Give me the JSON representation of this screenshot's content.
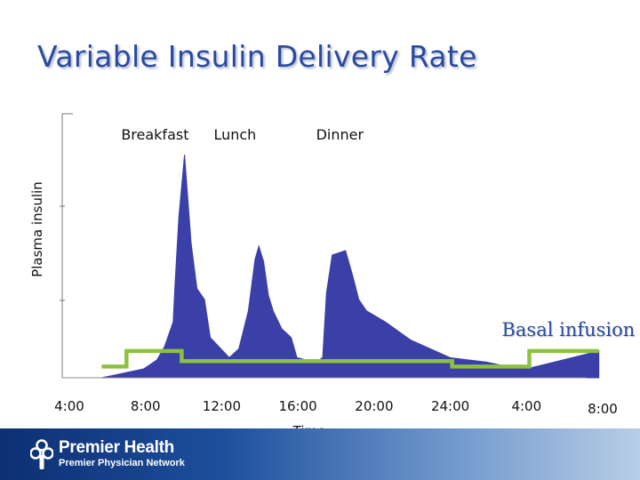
{
  "title": "Variable Insulin Delivery Rate",
  "footer": {
    "brand": "Premier Health",
    "subtitle": "Premier Physician Network"
  },
  "colors": {
    "title": "#2b4a9e",
    "area": "#3b3fa8",
    "basal": "#8cc23f"
  },
  "chart_data": {
    "type": "area",
    "title": "Variable Insulin Delivery Rate",
    "xlabel": "Time",
    "ylabel": "Plasma insulin",
    "xlim": [
      4,
      32
    ],
    "ylim": [
      0,
      100
    ],
    "x_ticks": [
      {
        "value": 4,
        "label": "4:00"
      },
      {
        "value": 8,
        "label": "8:00"
      },
      {
        "value": 12,
        "label": "12:00"
      },
      {
        "value": 16,
        "label": "16:00"
      },
      {
        "value": 20,
        "label": "20:00"
      },
      {
        "value": 24,
        "label": "24:00"
      },
      {
        "value": 28,
        "label": "4:00"
      },
      {
        "value": 32,
        "label": "8:00"
      }
    ],
    "meals": [
      {
        "label": "Breakfast",
        "x": 8.5
      },
      {
        "label": "Lunch",
        "x": 12.7
      },
      {
        "label": "Dinner",
        "x": 18.2
      }
    ],
    "series": [
      {
        "name": "Plasma insulin",
        "kind": "area",
        "x": [
          5.7,
          7.9,
          8.6,
          9.0,
          9.45,
          9.55,
          9.75,
          10.05,
          10.4,
          10.7,
          11.1,
          11.4,
          12.4,
          12.9,
          13.4,
          13.75,
          13.95,
          14.2,
          14.45,
          14.7,
          15.15,
          15.65,
          15.95,
          16.9,
          17.3,
          17.5,
          17.8,
          18.5,
          18.9,
          19.2,
          19.6,
          20.6,
          21.9,
          24.0,
          25.9,
          27.0,
          28.0,
          31.8,
          31.8
        ],
        "y": [
          0,
          4,
          8,
          14,
          25,
          42,
          72,
          100,
          60,
          40,
          35,
          18,
          9,
          13,
          30,
          53,
          59,
          52,
          37,
          30,
          22,
          18,
          9,
          7,
          9,
          38,
          55,
          57,
          45,
          35,
          30,
          25,
          17,
          9,
          7,
          5,
          4,
          12,
          0
        ]
      },
      {
        "name": "Basal infusion",
        "kind": "step",
        "x": [
          5.7,
          7.0,
          7.0,
          9.9,
          9.9,
          24.1,
          24.1,
          28.15,
          28.15,
          31.8
        ],
        "y": [
          5,
          5,
          12,
          12,
          7.5,
          7.5,
          5,
          5,
          12,
          12
        ]
      }
    ],
    "annotations": [
      {
        "text": "Basal infusion",
        "x": 30.2,
        "y": 20
      }
    ]
  }
}
